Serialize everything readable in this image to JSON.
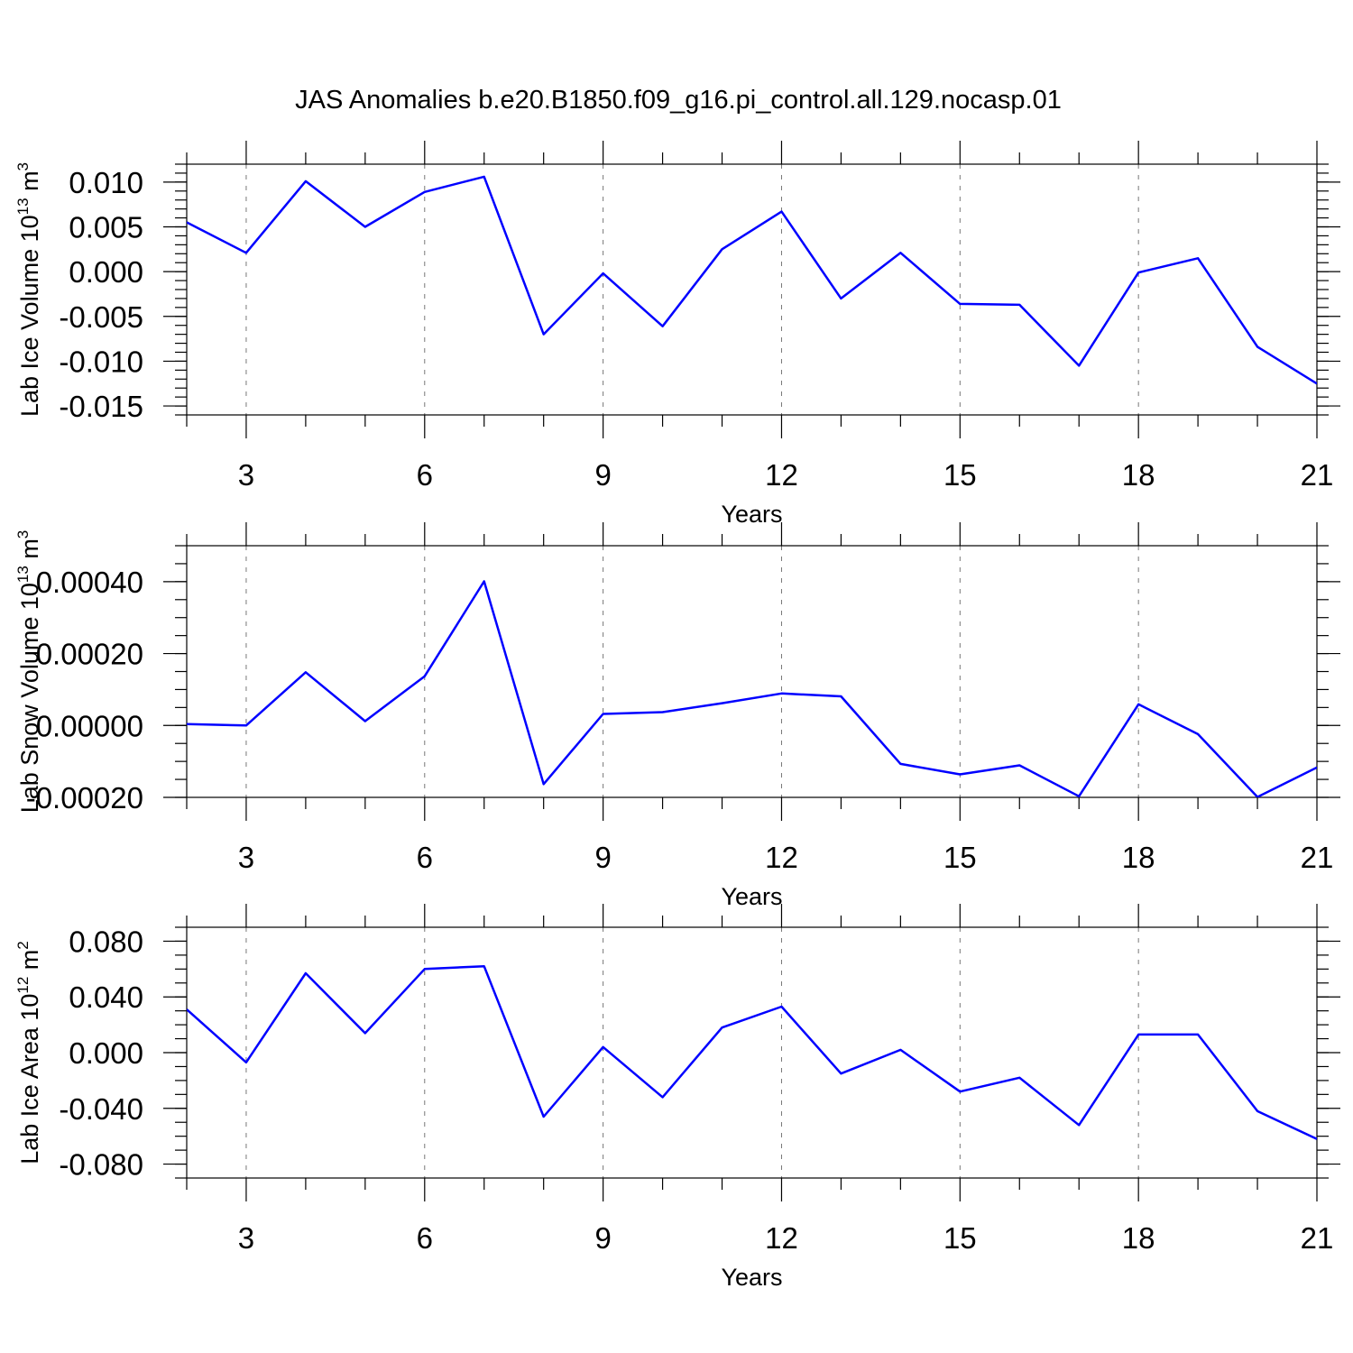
{
  "figure": {
    "title": "JAS Anomalies b.e20.B1850.f09_g16.pi_control.all.129.nocasp.01"
  },
  "chart_data": [
    {
      "type": "line",
      "ylabel": "Lab Ice Volume",
      "ylabel_unit_base": "10",
      "ylabel_unit_exp": "13",
      "ylabel_unit_suffix": "m",
      "ylabel_unit_suffix_exp": "3",
      "xlabel": "Years",
      "xlim": [
        2,
        21
      ],
      "ylim": [
        -0.016,
        0.012
      ],
      "x_ticks": [
        3,
        6,
        9,
        12,
        15,
        18,
        21
      ],
      "y_ticks": [
        0.01,
        0.005,
        0.0,
        -0.005,
        -0.01,
        -0.015
      ],
      "y_tick_labels": [
        "0.010",
        "0.005",
        "0.000",
        "-0.005",
        "-0.010",
        "-0.015"
      ],
      "y_minor_step": 0.001,
      "grid": "vertical dashed at major x ticks",
      "color": "#0000ff",
      "x": [
        2,
        3,
        4,
        5,
        6,
        7,
        8,
        9,
        10,
        11,
        12,
        13,
        14,
        15,
        16,
        17,
        18,
        19,
        20,
        21
      ],
      "values": [
        0.0055,
        0.0021,
        0.0101,
        0.005,
        0.0089,
        0.0106,
        -0.007,
        -0.0002,
        -0.0061,
        0.0025,
        0.0067,
        -0.003,
        0.0021,
        -0.0036,
        -0.0037,
        -0.0105,
        -0.0001,
        0.0015,
        -0.0084,
        -0.0125
      ]
    },
    {
      "type": "line",
      "ylabel": "Lab Snow Volume",
      "ylabel_unit_base": "10",
      "ylabel_unit_exp": "13",
      "ylabel_unit_suffix": "m",
      "ylabel_unit_suffix_exp": "3",
      "xlabel": "Years",
      "xlim": [
        2,
        21
      ],
      "ylim": [
        -0.0002,
        0.0005
      ],
      "x_ticks": [
        3,
        6,
        9,
        12,
        15,
        18,
        21
      ],
      "y_ticks": [
        0.0004,
        0.0002,
        0.0,
        -0.0002
      ],
      "y_tick_labels": [
        "0.00040",
        "0.00020",
        "0.00000",
        "-0.00020"
      ],
      "y_minor_step": 5e-05,
      "grid": "vertical dashed at major x ticks",
      "color": "#0000ff",
      "x": [
        2,
        3,
        4,
        5,
        6,
        7,
        8,
        9,
        10,
        11,
        12,
        13,
        14,
        15,
        16,
        17,
        18,
        19,
        20,
        21
      ],
      "values": [
        4e-06,
        0.0,
        0.000148,
        1.2e-05,
        0.000137,
        0.000401,
        -0.000163,
        3.2e-05,
        3.7e-05,
        6.2e-05,
        8.9e-05,
        8.1e-05,
        -0.000107,
        -0.000136,
        -0.000111,
        -0.000197,
        5.9e-05,
        -2.4e-05,
        -0.000199,
        -0.000117
      ]
    },
    {
      "type": "line",
      "ylabel": "Lab Ice Area",
      "ylabel_unit_base": "10",
      "ylabel_unit_exp": "12",
      "ylabel_unit_suffix": "m",
      "ylabel_unit_suffix_exp": "2",
      "xlabel": "Years",
      "xlim": [
        2,
        21
      ],
      "ylim": [
        -0.09,
        0.09
      ],
      "x_ticks": [
        3,
        6,
        9,
        12,
        15,
        18,
        21
      ],
      "y_ticks": [
        0.08,
        0.04,
        0.0,
        -0.04,
        -0.08
      ],
      "y_tick_labels": [
        "0.080",
        "0.040",
        "0.000",
        "-0.040",
        "-0.080"
      ],
      "y_minor_step": 0.01,
      "grid": "vertical dashed at major x ticks",
      "color": "#0000ff",
      "x": [
        2,
        3,
        4,
        5,
        6,
        7,
        8,
        9,
        10,
        11,
        12,
        13,
        14,
        15,
        16,
        17,
        18,
        19,
        20,
        21
      ],
      "values": [
        0.031,
        -0.007,
        0.057,
        0.014,
        0.06,
        0.062,
        -0.046,
        0.004,
        -0.032,
        0.018,
        0.033,
        -0.015,
        0.002,
        -0.028,
        -0.018,
        -0.052,
        0.013,
        0.013,
        -0.042,
        -0.062
      ]
    }
  ]
}
